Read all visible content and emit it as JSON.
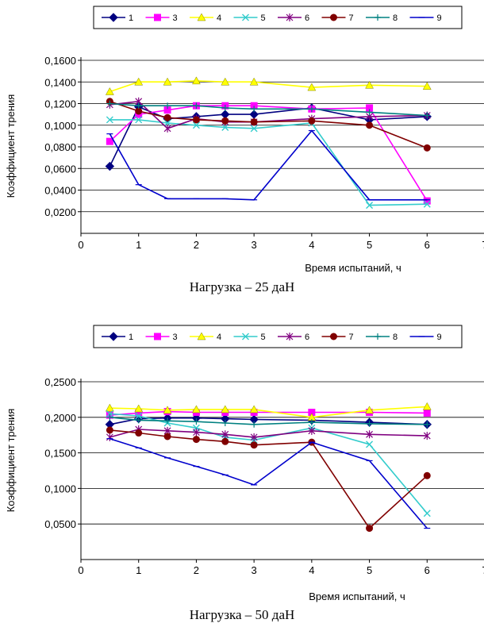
{
  "chart_data": [
    {
      "type": "line",
      "caption": "Нагрузка – 25 даН",
      "xlabel": "Время испытаний, ч",
      "ylabel": "Коэффициент трения",
      "xlim": [
        0,
        7
      ],
      "ylim": [
        0,
        0.16
      ],
      "x_ticks": [
        0,
        1,
        2,
        3,
        4,
        5,
        6,
        7
      ],
      "y_ticks": [
        0.02,
        0.04,
        0.06,
        0.08,
        0.1,
        0.12,
        0.14,
        0.16
      ],
      "y_tick_labels": [
        "0,0200",
        "0,0400",
        "0,0600",
        "0,0800",
        "0,1000",
        "0,1200",
        "0,1400",
        "0,1600"
      ],
      "grid": "horizontal",
      "legend": "top",
      "x": [
        0.5,
        1,
        1.5,
        2,
        2.5,
        3,
        4,
        5,
        6
      ],
      "series": [
        {
          "name": "1",
          "color": "#000080",
          "marker": "diamond",
          "values": [
            0.062,
            0.117,
            0.106,
            0.108,
            0.11,
            0.11,
            0.116,
            0.105,
            0.108
          ]
        },
        {
          "name": "3",
          "color": "#FF00FF",
          "marker": "square",
          "values": [
            0.085,
            0.11,
            0.114,
            0.118,
            0.118,
            0.118,
            0.115,
            0.116,
            0.03
          ]
        },
        {
          "name": "4",
          "color": "#FFFF00",
          "marker": "triangle",
          "values": [
            0.131,
            0.14,
            0.14,
            0.141,
            0.14,
            0.14,
            0.135,
            0.137,
            0.136
          ]
        },
        {
          "name": "5",
          "color": "#33CCCC",
          "marker": "x",
          "values": [
            0.105,
            0.105,
            0.102,
            0.1,
            0.098,
            0.097,
            0.102,
            0.026,
            0.027
          ]
        },
        {
          "name": "6",
          "color": "#800080",
          "marker": "star",
          "values": [
            0.119,
            0.122,
            0.097,
            0.106,
            0.103,
            0.103,
            0.106,
            0.108,
            0.109
          ]
        },
        {
          "name": "7",
          "color": "#800000",
          "marker": "circle",
          "values": [
            0.122,
            0.113,
            0.107,
            0.105,
            0.104,
            0.103,
            0.104,
            0.1,
            0.079
          ]
        },
        {
          "name": "8",
          "color": "#008080",
          "marker": "plus",
          "values": [
            0.12,
            0.118,
            0.118,
            0.118,
            0.116,
            0.115,
            0.115,
            0.112,
            0.109
          ]
        },
        {
          "name": "9",
          "color": "#0000CC",
          "marker": "dash",
          "values": [
            0.092,
            0.045,
            0.032,
            0.032,
            0.032,
            0.031,
            0.095,
            0.031,
            0.031
          ]
        }
      ]
    },
    {
      "type": "line",
      "caption": "Нагрузка – 50 даН",
      "xlabel": "Время испытаний, ч",
      "ylabel": "Коэффициент трения",
      "xlim": [
        0,
        7
      ],
      "ylim": [
        0,
        0.25
      ],
      "x_ticks": [
        0,
        1,
        2,
        3,
        4,
        5,
        6,
        7
      ],
      "y_ticks": [
        0.05,
        0.1,
        0.15,
        0.2,
        0.25
      ],
      "y_tick_labels": [
        "0,0500",
        "0,1000",
        "0,1500",
        "0,2000",
        "0,2500"
      ],
      "grid": "horizontal",
      "legend": "top",
      "x": [
        0.5,
        1,
        1.5,
        2,
        2.5,
        3,
        4,
        5,
        6
      ],
      "series": [
        {
          "name": "1",
          "color": "#000080",
          "marker": "diamond",
          "values": [
            0.19,
            0.198,
            0.199,
            0.199,
            0.198,
            0.197,
            0.196,
            0.193,
            0.19
          ]
        },
        {
          "name": "3",
          "color": "#FF00FF",
          "marker": "square",
          "values": [
            0.203,
            0.206,
            0.208,
            0.207,
            0.207,
            0.207,
            0.207,
            0.207,
            0.206
          ]
        },
        {
          "name": "4",
          "color": "#FFFF00",
          "marker": "triangle",
          "values": [
            0.213,
            0.212,
            0.21,
            0.211,
            0.211,
            0.211,
            0.2,
            0.21,
            0.215
          ]
        },
        {
          "name": "5",
          "color": "#33CCCC",
          "marker": "x",
          "values": [
            0.205,
            0.202,
            0.192,
            0.185,
            0.172,
            0.168,
            0.185,
            0.162,
            0.065
          ]
        },
        {
          "name": "6",
          "color": "#800080",
          "marker": "star",
          "values": [
            0.172,
            0.183,
            0.181,
            0.179,
            0.176,
            0.172,
            0.181,
            0.176,
            0.174
          ]
        },
        {
          "name": "7",
          "color": "#800000",
          "marker": "circle",
          "values": [
            0.182,
            0.178,
            0.173,
            0.169,
            0.166,
            0.161,
            0.165,
            0.044,
            0.118
          ]
        },
        {
          "name": "8",
          "color": "#008080",
          "marker": "plus",
          "values": [
            0.2,
            0.196,
            0.195,
            0.194,
            0.192,
            0.19,
            0.193,
            0.191,
            0.19
          ]
        },
        {
          "name": "9",
          "color": "#0000CC",
          "marker": "dash",
          "values": [
            0.17,
            0.157,
            0.143,
            0.131,
            0.119,
            0.105,
            0.165,
            0.139,
            0.044
          ]
        }
      ]
    }
  ]
}
